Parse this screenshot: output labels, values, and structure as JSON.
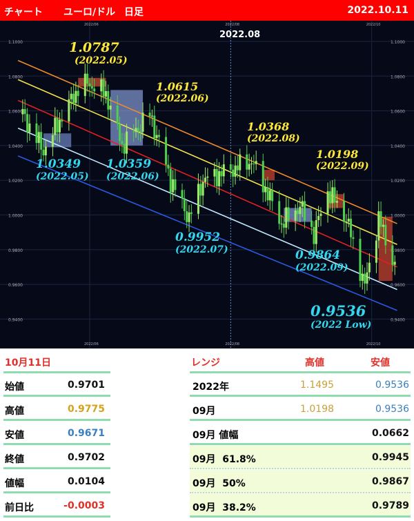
{
  "header": {
    "title": "チャート",
    "pair": "ユーロ/ドル",
    "timeframe": "日足",
    "date": "2022.10.11"
  },
  "chart_data": {
    "type": "candlestick",
    "y_ticks": [
      "1.1000",
      "1.0800",
      "1.0600",
      "1.0400",
      "1.0200",
      "1.0000",
      "0.9800",
      "0.9600",
      "0.9400"
    ],
    "ylim": [
      0.93,
      1.11
    ],
    "x_ticks": [
      "2022/06",
      "2022/08",
      "2022/10"
    ],
    "highlight_label": "2022.08",
    "path": [
      [
        "2022-05-03",
        1.058
      ],
      [
        "2022-05-12",
        1.037
      ],
      [
        "2022-05-20",
        1.057
      ],
      [
        "2022-05-27",
        1.073
      ],
      [
        "2022-05-31",
        1.076
      ],
      [
        "2022-06-08",
        1.07
      ],
      [
        "2022-06-15",
        1.04
      ],
      [
        "2022-06-27",
        1.058
      ],
      [
        "2022-07-01",
        1.042
      ],
      [
        "2022-07-06",
        1.02
      ],
      [
        "2022-07-14",
        0.998
      ],
      [
        "2022-07-20",
        1.02
      ],
      [
        "2022-08-01",
        1.026
      ],
      [
        "2022-08-10",
        1.031
      ],
      [
        "2022-08-15",
        1.018
      ],
      [
        "2022-08-23",
        0.995
      ],
      [
        "2022-08-31",
        1.005
      ],
      [
        "2022-09-06",
        0.989
      ],
      [
        "2022-09-12",
        1.014
      ],
      [
        "2022-09-20",
        0.998
      ],
      [
        "2022-09-28",
        0.959
      ],
      [
        "2022-10-04",
        0.998
      ],
      [
        "2022-10-11",
        0.9702
      ]
    ],
    "channels": [
      {
        "color": "#f08a2a",
        "start": [
          "2022-05-01",
          1.089
        ],
        "end": [
          "2022-10-12",
          0.995
        ]
      },
      {
        "color": "#f3e34a",
        "start": [
          "2022-05-01",
          1.078
        ],
        "end": [
          "2022-10-12",
          0.983
        ]
      },
      {
        "color": "#e02020",
        "start": [
          "2022-05-01",
          1.066
        ],
        "end": [
          "2022-10-12",
          0.97
        ]
      },
      {
        "color": "#bfe9ff",
        "start": [
          "2022-05-01",
          1.05
        ],
        "end": [
          "2022-10-12",
          0.957
        ]
      },
      {
        "color": "#2a5adf",
        "start": [
          "2022-05-01",
          1.034
        ],
        "end": [
          "2022-10-12",
          0.945
        ]
      }
    ],
    "annotations": [
      {
        "value": "1.0787",
        "period": "(2022.05)",
        "kind": "high"
      },
      {
        "value": "1.0615",
        "period": "(2022.06)",
        "kind": "high"
      },
      {
        "value": "1.0368",
        "period": "(2022.08)",
        "kind": "high"
      },
      {
        "value": "1.0198",
        "period": "(2022.09)",
        "kind": "high"
      },
      {
        "value": "1.0349",
        "period": "(2022.05)",
        "kind": "low"
      },
      {
        "value": "1.0359",
        "period": "(2022.06)",
        "kind": "low"
      },
      {
        "value": "0.9952",
        "period": "(2022.07)",
        "kind": "low"
      },
      {
        "value": "0.9864",
        "period": "(2022.09)",
        "kind": "low"
      },
      {
        "value": "0.9536",
        "period": "(2022 Low)",
        "kind": "low"
      }
    ]
  },
  "daily": {
    "title": "10月11日",
    "rows": [
      {
        "label": "始値",
        "value": "0.9701",
        "color": "#111"
      },
      {
        "label": "高値",
        "value": "0.9775",
        "color": "#d4a21c"
      },
      {
        "label": "安値",
        "value": "0.9671",
        "color": "#3a7fc0"
      },
      {
        "label": "終値",
        "value": "0.9702",
        "color": "#111"
      },
      {
        "label": "値幅",
        "value": "0.0104",
        "color": "#111"
      },
      {
        "label": "前日比",
        "value": "-0.0003",
        "color": "#e0302a"
      }
    ]
  },
  "range": {
    "title": "レンジ",
    "high_header": "高値",
    "low_header": "安値",
    "rows": [
      {
        "label": "2022年",
        "high": "1.1495",
        "low": "0.9536"
      },
      {
        "label": "09月",
        "high": "1.0198",
        "low": "0.9536"
      },
      {
        "label": "09月 値幅",
        "high": "",
        "low": "0.0662"
      },
      {
        "label": "09月  61.8%",
        "high": "",
        "low": "0.9945"
      },
      {
        "label": "09月  50%",
        "high": "",
        "low": "0.9867"
      },
      {
        "label": "09月  38.2%",
        "high": "",
        "low": "0.9789"
      }
    ]
  }
}
